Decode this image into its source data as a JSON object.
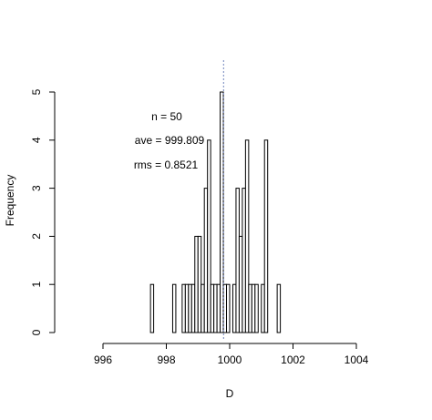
{
  "chart_data": {
    "type": "histogram",
    "x_label": "D",
    "y_label": "Frequency",
    "annotations": [
      "n = 50",
      "ave = 999.809",
      "rms = 0.8521"
    ],
    "mean_line": 999.809,
    "bins": [
      997.5,
      997.6,
      997.7,
      997.8,
      997.9,
      998.0,
      998.1,
      998.2,
      998.3,
      998.4,
      998.5,
      998.6,
      998.7,
      998.8,
      998.9,
      999.0,
      999.1,
      999.2,
      999.3,
      999.4,
      999.5,
      999.6,
      999.7,
      999.8,
      999.9,
      1000.0,
      1000.1,
      1000.2,
      1000.3,
      1000.4,
      1000.5,
      1000.6,
      1000.7,
      1000.8,
      1000.9,
      1001.0,
      1001.1,
      1001.2,
      1001.3,
      1001.4,
      1001.5,
      1001.6
    ],
    "values": [
      1,
      0,
      0,
      0,
      0,
      0,
      0,
      1,
      0,
      0,
      1,
      1,
      1,
      1,
      2,
      2,
      1,
      3,
      4,
      1,
      1,
      1,
      5,
      1,
      1,
      0,
      1,
      3,
      2,
      3,
      4,
      1,
      1,
      1,
      0,
      1,
      4,
      0,
      0,
      0,
      1
    ],
    "color": "#ffffff",
    "xlim": [
      996,
      1004
    ],
    "xticks": [
      996,
      998,
      1000,
      1002,
      1004
    ],
    "ylim": [
      0,
      5
    ],
    "yticks": [
      0,
      1,
      2,
      3,
      4,
      5
    ]
  }
}
